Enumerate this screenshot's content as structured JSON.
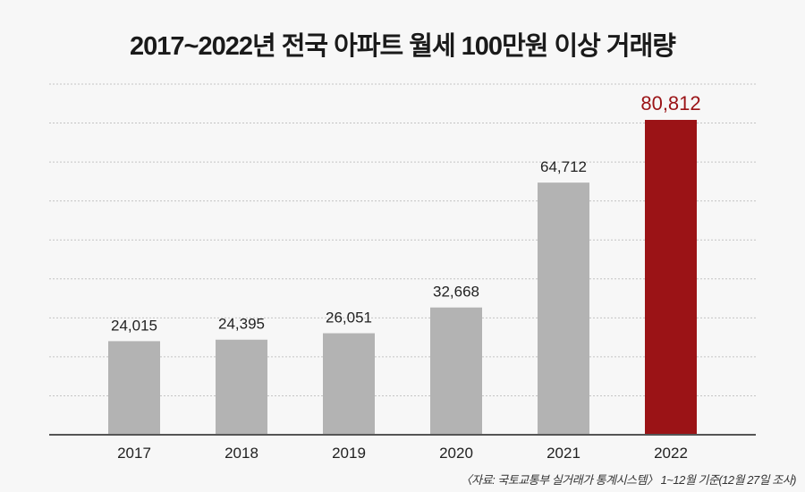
{
  "chart_data": {
    "type": "bar",
    "title": "2017~2022년 전국 아파트 월세 100만원 이상 거래량",
    "categories": [
      "2017",
      "2018",
      "2019",
      "2020",
      "2021",
      "2022"
    ],
    "values": [
      24015,
      24395,
      26051,
      32668,
      64712,
      80812
    ],
    "data_labels": [
      "24,015",
      "24,395",
      "26,051",
      "32,668",
      "64,712",
      "80,812"
    ],
    "xlabel": "",
    "ylabel": "",
    "ylim": [
      0,
      90000
    ],
    "grid": true,
    "grid_style": "dotted horizontal",
    "colors": {
      "default": "#b3b3b3",
      "highlight": "#9b1316",
      "highlight_label": "#9b1316",
      "label": "#222222"
    },
    "highlight_index": 5
  },
  "source": "〈자료: 국토교통부 실거래가 통계시스템〉 1~12월 기준(12월 27일 조사)"
}
